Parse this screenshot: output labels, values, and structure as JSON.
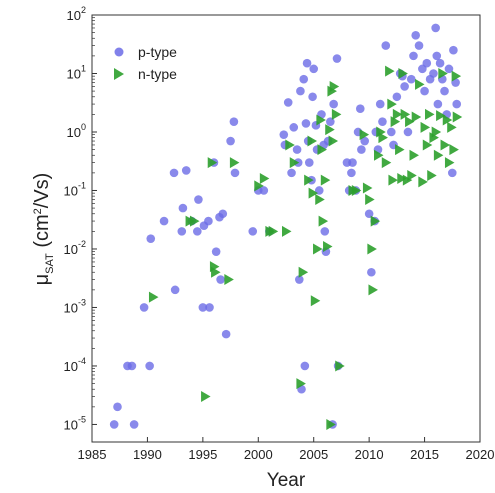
{
  "chart_data": {
    "type": "scatter",
    "xlabel": "Year",
    "ylabel": "μSAT (cm²/Vs)",
    "xlim": [
      1985,
      2020
    ],
    "ylim_log10": [
      -5.3,
      2
    ],
    "xscale": "linear",
    "yscale": "log",
    "x_ticks": [
      1985,
      1990,
      1995,
      2000,
      2005,
      2010,
      2015,
      2020
    ],
    "y_tick_exponents": [
      -5,
      -4,
      -3,
      -2,
      -1,
      0,
      1,
      2
    ],
    "y_tick_base": "10",
    "grid": false,
    "legend_position": "top-left",
    "colors": {
      "p-type": "#6b6be6",
      "n-type": "#2ca02c"
    },
    "series": [
      {
        "name": "p-type",
        "marker": "circle",
        "points": [
          [
            1987,
            1e-05
          ],
          [
            1987.3,
            2e-05
          ],
          [
            1988.2,
            0.0001
          ],
          [
            1988.6,
            0.0001
          ],
          [
            1988.8,
            1e-05
          ],
          [
            1989.7,
            0.001
          ],
          [
            1990.2,
            0.0001
          ],
          [
            1990.3,
            0.015
          ],
          [
            1991.5,
            0.03
          ],
          [
            1992.4,
            0.2
          ],
          [
            1992.5,
            0.002
          ],
          [
            1993.2,
            0.05
          ],
          [
            1993.5,
            0.22
          ],
          [
            1993.1,
            0.02
          ],
          [
            1994.0,
            0.03
          ],
          [
            1994.5,
            0.02
          ],
          [
            1994.6,
            0.07
          ],
          [
            1995.0,
            0.001
          ],
          [
            1995.1,
            0.025
          ],
          [
            1995.5,
            0.03
          ],
          [
            1995.6,
            0.001
          ],
          [
            1996.0,
            0.3
          ],
          [
            1996.2,
            0.009
          ],
          [
            1996.5,
            0.035
          ],
          [
            1996.6,
            0.003
          ],
          [
            1996.8,
            0.04
          ],
          [
            1997.1,
            0.00035
          ],
          [
            1997.5,
            0.7
          ],
          [
            1997.8,
            1.5
          ],
          [
            1997.9,
            0.2
          ],
          [
            1999.5,
            0.02
          ],
          [
            2000.0,
            0.1
          ],
          [
            2000.5,
            0.1
          ],
          [
            2001.0,
            0.02
          ],
          [
            2002.3,
            0.9
          ],
          [
            2002.4,
            0.6
          ],
          [
            2002.7,
            3.2
          ],
          [
            2003.0,
            0.2
          ],
          [
            2003.2,
            1.2
          ],
          [
            2003.5,
            0.5
          ],
          [
            2003.6,
            0.3
          ],
          [
            2003.7,
            0.003
          ],
          [
            2003.8,
            5.0
          ],
          [
            2003.9,
            4e-05
          ],
          [
            2004.1,
            8.0
          ],
          [
            2004.2,
            0.0001
          ],
          [
            2004.3,
            1.4
          ],
          [
            2004.4,
            15
          ],
          [
            2004.5,
            0.7
          ],
          [
            2004.6,
            0.3
          ],
          [
            2004.8,
            0.15
          ],
          [
            2004.9,
            4.0
          ],
          [
            2005.0,
            12
          ],
          [
            2005.2,
            1.3
          ],
          [
            2005.3,
            0.5
          ],
          [
            2005.5,
            0.1
          ],
          [
            2005.7,
            2.0
          ],
          [
            2005.9,
            0.6
          ],
          [
            2006.0,
            0.02
          ],
          [
            2006.1,
            0.009
          ],
          [
            2006.3,
            0.7
          ],
          [
            2006.5,
            1.5
          ],
          [
            2006.7,
            1e-05
          ],
          [
            2006.8,
            3.0
          ],
          [
            2007.1,
            18
          ],
          [
            2007.2,
            0.0001
          ],
          [
            2008.0,
            0.3
          ],
          [
            2008.2,
            0.1
          ],
          [
            2008.4,
            0.2
          ],
          [
            2008.5,
            0.3
          ],
          [
            2008.8,
            0.1
          ],
          [
            2009.0,
            1.0
          ],
          [
            2009.2,
            2.5
          ],
          [
            2009.3,
            0.5
          ],
          [
            2009.6,
            0.7
          ],
          [
            2010.0,
            0.04
          ],
          [
            2010.2,
            0.004
          ],
          [
            2010.5,
            0.03
          ],
          [
            2010.6,
            1.0
          ],
          [
            2010.8,
            0.5
          ],
          [
            2011.0,
            3.0
          ],
          [
            2011.2,
            1.5
          ],
          [
            2011.5,
            30
          ],
          [
            2012.0,
            1.0
          ],
          [
            2012.2,
            0.6
          ],
          [
            2012.5,
            4.0
          ],
          [
            2012.8,
            10
          ],
          [
            2013.0,
            9.0
          ],
          [
            2013.2,
            6.0
          ],
          [
            2013.5,
            1.0
          ],
          [
            2013.8,
            8.0
          ],
          [
            2014.0,
            20
          ],
          [
            2014.2,
            45
          ],
          [
            2014.5,
            30
          ],
          [
            2014.8,
            12
          ],
          [
            2015.0,
            5.0
          ],
          [
            2015.2,
            15
          ],
          [
            2015.5,
            8.0
          ],
          [
            2015.8,
            10
          ],
          [
            2016.0,
            60
          ],
          [
            2016.1,
            20
          ],
          [
            2016.2,
            3.0
          ],
          [
            2016.4,
            15
          ],
          [
            2016.6,
            8.0
          ],
          [
            2016.8,
            5.0
          ],
          [
            2017.0,
            2.0
          ],
          [
            2017.2,
            12
          ],
          [
            2017.5,
            0.2
          ],
          [
            2017.6,
            25
          ],
          [
            2017.8,
            7.0
          ],
          [
            2017.9,
            3.0
          ]
        ]
      },
      {
        "name": "n-type",
        "marker": "triangle-right",
        "points": [
          [
            1990.5,
            0.0015
          ],
          [
            1993.8,
            0.03
          ],
          [
            1994.2,
            0.03
          ],
          [
            1995.2,
            3e-05
          ],
          [
            1995.8,
            0.3
          ],
          [
            1996.0,
            0.005
          ],
          [
            1996.1,
            0.004
          ],
          [
            1997.3,
            0.003
          ],
          [
            1997.8,
            0.3
          ],
          [
            2000.0,
            0.12
          ],
          [
            2000.5,
            0.16
          ],
          [
            2001.0,
            0.02
          ],
          [
            2001.3,
            0.02
          ],
          [
            2002.5,
            0.02
          ],
          [
            2002.8,
            0.6
          ],
          [
            2003.2,
            0.3
          ],
          [
            2003.8,
            5e-05
          ],
          [
            2004.0,
            0.004
          ],
          [
            2004.5,
            0.15
          ],
          [
            2004.8,
            0.7
          ],
          [
            2004.9,
            0.09
          ],
          [
            2005.1,
            0.0013
          ],
          [
            2005.3,
            0.01
          ],
          [
            2005.5,
            0.07
          ],
          [
            2005.6,
            1.6
          ],
          [
            2005.7,
            0.5
          ],
          [
            2005.8,
            0.03
          ],
          [
            2006.0,
            0.15
          ],
          [
            2006.2,
            0.011
          ],
          [
            2006.4,
            1.1
          ],
          [
            2006.5,
            1e-05
          ],
          [
            2006.6,
            5.0
          ],
          [
            2006.7,
            0.7
          ],
          [
            2006.8,
            6.0
          ],
          [
            2007.0,
            2.0
          ],
          [
            2007.3,
            0.0001
          ],
          [
            2008.5,
            0.1
          ],
          [
            2008.8,
            0.1
          ],
          [
            2009.5,
            0.9
          ],
          [
            2009.8,
            0.11
          ],
          [
            2010.0,
            0.07
          ],
          [
            2010.2,
            0.01
          ],
          [
            2010.3,
            0.002
          ],
          [
            2010.5,
            0.03
          ],
          [
            2010.8,
            0.4
          ],
          [
            2011.0,
            1.0
          ],
          [
            2011.2,
            0.8
          ],
          [
            2011.5,
            0.3
          ],
          [
            2011.8,
            11
          ],
          [
            2012.0,
            3.0
          ],
          [
            2012.1,
            0.15
          ],
          [
            2012.3,
            1.5
          ],
          [
            2012.5,
            2.0
          ],
          [
            2012.7,
            0.5
          ],
          [
            2012.9,
            0.16
          ],
          [
            2013.0,
            10
          ],
          [
            2013.2,
            2.0
          ],
          [
            2013.4,
            0.15
          ],
          [
            2013.6,
            1.5
          ],
          [
            2013.8,
            0.18
          ],
          [
            2014.0,
            0.4
          ],
          [
            2014.2,
            1.8
          ],
          [
            2014.5,
            6.5
          ],
          [
            2014.8,
            0.14
          ],
          [
            2015.0,
            1.2
          ],
          [
            2015.2,
            0.6
          ],
          [
            2015.4,
            2.0
          ],
          [
            2015.6,
            0.18
          ],
          [
            2015.8,
            0.8
          ],
          [
            2016.0,
            1.0
          ],
          [
            2016.2,
            0.4
          ],
          [
            2016.4,
            1.9
          ],
          [
            2016.6,
            10
          ],
          [
            2016.8,
            0.6
          ],
          [
            2017.0,
            1.6
          ],
          [
            2017.2,
            0.3
          ],
          [
            2017.4,
            1.2
          ],
          [
            2017.6,
            0.5
          ],
          [
            2017.8,
            9.0
          ],
          [
            2017.9,
            1.8
          ]
        ]
      }
    ]
  }
}
